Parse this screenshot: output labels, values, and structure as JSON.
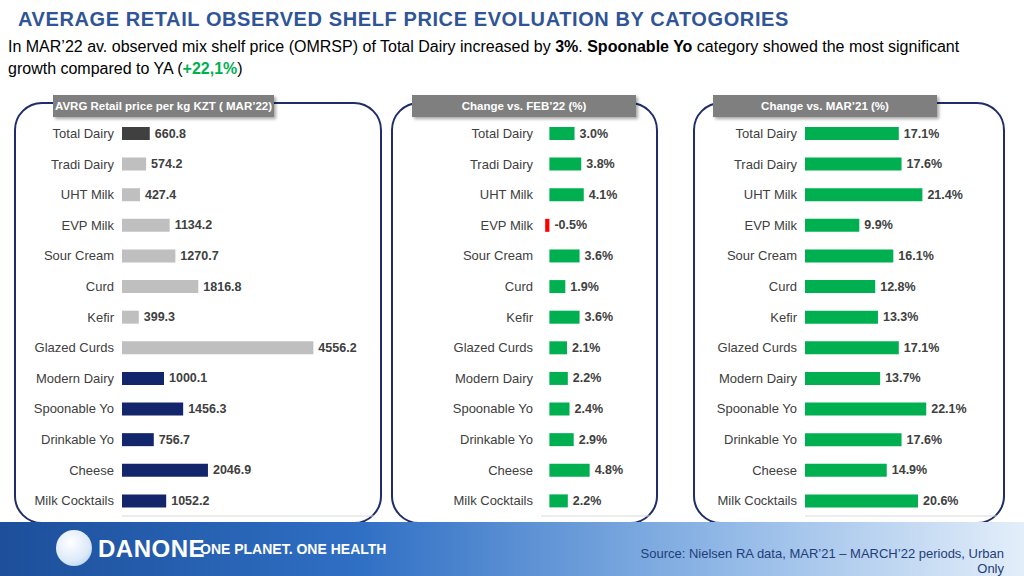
{
  "title": "AVERAGE RETAIL OBSERVED SHELF PRICE EVOLUATION BY CATOGORIES",
  "subtitle_parts": [
    "In MAR’22 av. observed mix shelf price (OMRSP) of Total Dairy increased by ",
    "3%",
    ". ",
    "Spoonable Yo",
    " category showed the most significant growth compared to YA (",
    "+22,1%",
    ")"
  ],
  "brand": "DANONE",
  "slogan": "ONE PLANET. ONE HEALTH",
  "source": "Source: Nielsen RA data, MAR’21 – MARCH’22 periods, Urban Only",
  "chart_data": [
    {
      "type": "bar",
      "orientation": "horizontal",
      "title": "AVRG Retail price per kg KZT ( MAR’22)",
      "categories": [
        "Total Dairy",
        "Tradi Dairy",
        "UHT Milk",
        "EVP Milk",
        "Sour Cream",
        "Curd",
        "Kefir",
        "Glazed Curds",
        "Modern Dairy",
        "Spoonable Yo",
        "Drinkable Yo",
        "Cheese",
        "Milk Cocktails"
      ],
      "values": [
        660.8,
        574.2,
        427.4,
        1134.2,
        1270.7,
        1816.8,
        399.3,
        4556.2,
        1000.1,
        1456.3,
        756.7,
        2046.9,
        1052.2
      ],
      "colors": [
        "#404040",
        "#bfbfbf",
        "#bfbfbf",
        "#bfbfbf",
        "#bfbfbf",
        "#bfbfbf",
        "#bfbfbf",
        "#bfbfbf",
        "#14266b",
        "#14266b",
        "#14266b",
        "#14266b",
        "#14266b"
      ],
      "xlim": [
        0,
        6000
      ],
      "data_labels": true,
      "tick_labels": "y"
    },
    {
      "type": "bar",
      "orientation": "horizontal",
      "title": "Change vs. FEB’22 (%)",
      "categories": [
        "Total Dairy",
        "Tradi Dairy",
        "UHT Milk",
        "EVP Milk",
        "Sour Cream",
        "Curd",
        "Kefir",
        "Glazed Curds",
        "Modern Dairy",
        "Spoonable Yo",
        "Drinkable Yo",
        "Cheese",
        "Milk Cocktails"
      ],
      "values": [
        3.0,
        3.8,
        4.1,
        -0.5,
        3.6,
        1.9,
        3.6,
        2.1,
        2.2,
        2.4,
        2.9,
        4.8,
        2.2
      ],
      "value_labels": [
        "3.0%",
        "3.8%",
        "4.1%",
        "-0.5%",
        "3.6%",
        "1.9%",
        "3.6%",
        "2.1%",
        "2.2%",
        "2.4%",
        "2.9%",
        "4.8%",
        "2.2%"
      ],
      "colors": [
        "#00b050",
        "#00b050",
        "#00b050",
        "#ff0000",
        "#00b050",
        "#00b050",
        "#00b050",
        "#00b050",
        "#00b050",
        "#00b050",
        "#00b050",
        "#00b050",
        "#00b050"
      ],
      "xlim": [
        -1,
        12
      ],
      "data_labels": true,
      "tick_labels": "y"
    },
    {
      "type": "bar",
      "orientation": "horizontal",
      "title": "Change vs. MAR’21 (%)",
      "categories": [
        "Total Dairy",
        "Tradi Dairy",
        "UHT Milk",
        "EVP Milk",
        "Sour Cream",
        "Curd",
        "Kefir",
        "Glazed Curds",
        "Modern Dairy",
        "Spoonable Yo",
        "Drinkable Yo",
        "Cheese",
        "Milk Cocktails"
      ],
      "values": [
        17.1,
        17.6,
        21.4,
        9.9,
        16.1,
        12.8,
        13.3,
        17.1,
        13.7,
        22.1,
        17.6,
        14.9,
        20.6
      ],
      "value_labels": [
        "17.1%",
        "17.6%",
        "21.4%",
        "9.9%",
        "16.1%",
        "12.8%",
        "13.3%",
        "17.1%",
        "13.7%",
        "22.1%",
        "17.6%",
        "14.9%",
        "20.6%"
      ],
      "colors": [
        "#00b050",
        "#00b050",
        "#00b050",
        "#00b050",
        "#00b050",
        "#00b050",
        "#00b050",
        "#00b050",
        "#00b050",
        "#00b050",
        "#00b050",
        "#00b050",
        "#00b050"
      ],
      "xlim": [
        0,
        35
      ],
      "data_labels": true,
      "tick_labels": "y"
    }
  ]
}
